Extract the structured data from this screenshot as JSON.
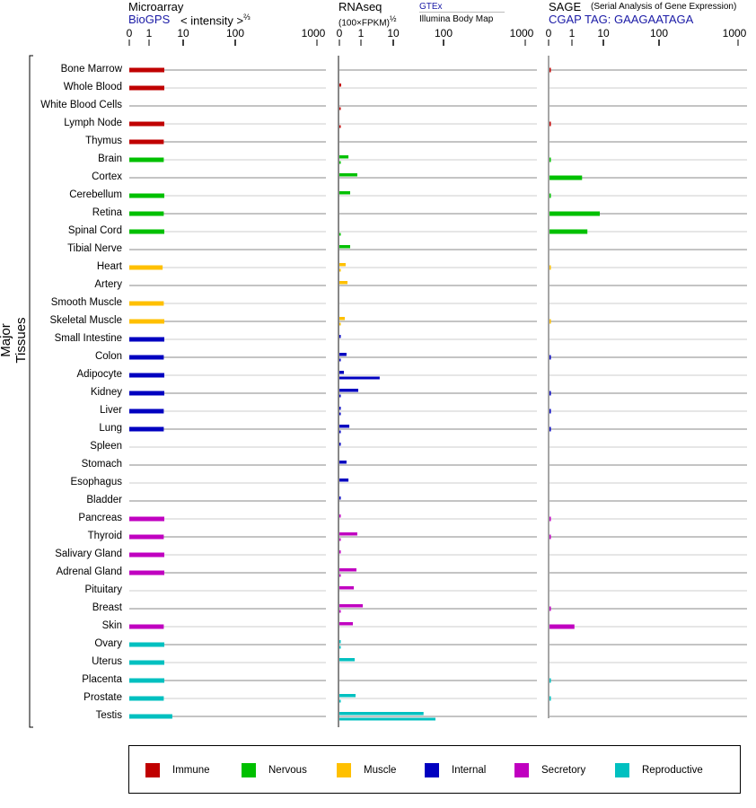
{
  "headers": {
    "microarray": {
      "title": "Microarray",
      "source": "BioGPS",
      "unit": "< intensity >",
      "unit_exp": "⅔"
    },
    "rnaseq": {
      "title": "RNAseq",
      "unit": "(100×FPKM)",
      "unit_exp": "½",
      "source_top": "GTEx",
      "source_bottom": "Illumina Body Map"
    },
    "sage": {
      "title": "SAGE",
      "subtitle": "(Serial Analysis of Gene Expression)",
      "tag": "CGAP TAG: GAAGAATAGA"
    }
  },
  "y_axis_label": "Major Tissues",
  "colors": {
    "Immune": "#c00000",
    "Nervous": "#00c000",
    "Muscle": "#ffc000",
    "Internal": "#0000c0",
    "Secretory": "#c000c0",
    "Reproductive": "#00c0c0",
    "link": "#1a1aa6"
  },
  "legend": [
    "Immune",
    "Nervous",
    "Muscle",
    "Internal",
    "Secretory",
    "Reproductive"
  ],
  "chart_data": {
    "type": "bar",
    "orientation": "horizontal",
    "panels": [
      {
        "key": "microarray",
        "ticks": [
          0,
          1,
          10,
          100,
          1000
        ],
        "tick_labels": [
          "0",
          "1",
          "10",
          "100",
          "1000"
        ],
        "xlim": [
          0,
          1000
        ]
      },
      {
        "key": "rnaseq",
        "series": [
          "gtex",
          "illumina"
        ],
        "ticks": [
          0,
          1,
          10,
          100,
          1000
        ],
        "tick_labels": [
          "0",
          "1",
          "10",
          "100",
          "1000"
        ],
        "xlim": [
          0,
          1000
        ]
      },
      {
        "key": "sage",
        "ticks": [
          0,
          1,
          10,
          100,
          1000
        ],
        "tick_labels": [
          "0",
          "1",
          "10",
          "100",
          "1000"
        ],
        "xlim": [
          0,
          1000
        ]
      }
    ],
    "tissues": [
      {
        "name": "Bone Marrow",
        "group": "Immune",
        "microarray": 2.8,
        "gtex": null,
        "illumina": null,
        "sage": 0.05
      },
      {
        "name": "Whole Blood",
        "group": "Immune",
        "microarray": 2.8,
        "gtex": 0.08,
        "illumina": null,
        "sage": null
      },
      {
        "name": "White Blood Cells",
        "group": "Immune",
        "microarray": null,
        "gtex": null,
        "illumina": 0.05,
        "sage": null
      },
      {
        "name": "Lymph Node",
        "group": "Immune",
        "microarray": 2.8,
        "gtex": null,
        "illumina": 0.05,
        "sage": 0.05
      },
      {
        "name": "Thymus",
        "group": "Immune",
        "microarray": 2.7,
        "gtex": null,
        "illumina": null,
        "sage": null
      },
      {
        "name": "Brain",
        "group": "Nervous",
        "microarray": 2.7,
        "gtex": 0.42,
        "illumina": 0.05,
        "sage": 0.05
      },
      {
        "name": "Cortex",
        "group": "Nervous",
        "microarray": null,
        "gtex": 0.83,
        "illumina": null,
        "sage": 2.1
      },
      {
        "name": "Cerebellum",
        "group": "Nervous",
        "microarray": 2.8,
        "gtex": 0.5,
        "illumina": null,
        "sage": 0.05
      },
      {
        "name": "Retina",
        "group": "Nervous",
        "microarray": 2.7,
        "gtex": null,
        "illumina": null,
        "sage": 7.7
      },
      {
        "name": "Spinal Cord",
        "group": "Nervous",
        "microarray": 2.8,
        "gtex": null,
        "illumina": 0.05,
        "sage": 3.1
      },
      {
        "name": "Tibial Nerve",
        "group": "Nervous",
        "microarray": null,
        "gtex": 0.5,
        "illumina": null,
        "sage": null
      },
      {
        "name": "Heart",
        "group": "Muscle",
        "microarray": 2.5,
        "gtex": 0.29,
        "illumina": 0.05,
        "sage": 0.05
      },
      {
        "name": "Artery",
        "group": "Muscle",
        "microarray": null,
        "gtex": 0.375,
        "illumina": null,
        "sage": null
      },
      {
        "name": "Smooth Muscle",
        "group": "Muscle",
        "microarray": 2.7,
        "gtex": null,
        "illumina": null,
        "sage": null
      },
      {
        "name": "Skeletal Muscle",
        "group": "Muscle",
        "microarray": 2.8,
        "gtex": 0.25,
        "illumina": 0.05,
        "sage": 0.05
      },
      {
        "name": "Small Intestine",
        "group": "Internal",
        "microarray": 2.8,
        "gtex": 0.05,
        "illumina": null,
        "sage": null
      },
      {
        "name": "Colon",
        "group": "Internal",
        "microarray": 2.7,
        "gtex": 0.33,
        "illumina": 0.05,
        "sage": 0.05
      },
      {
        "name": "Adipocyte",
        "group": "Internal",
        "microarray": 2.8,
        "gtex": 0.21,
        "illumina": 3.8,
        "sage": null
      },
      {
        "name": "Kidney",
        "group": "Internal",
        "microarray": 2.8,
        "gtex": 0.875,
        "illumina": 0.05,
        "sage": 0.05
      },
      {
        "name": "Liver",
        "group": "Internal",
        "microarray": 2.7,
        "gtex": 0.05,
        "illumina": 0.05,
        "sage": 0.05
      },
      {
        "name": "Lung",
        "group": "Internal",
        "microarray": 2.7,
        "gtex": 0.46,
        "illumina": 0.05,
        "sage": 0.05
      },
      {
        "name": "Spleen",
        "group": "Internal",
        "microarray": null,
        "gtex": 0.05,
        "illumina": null,
        "sage": null
      },
      {
        "name": "Stomach",
        "group": "Internal",
        "microarray": null,
        "gtex": 0.33,
        "illumina": null,
        "sage": null
      },
      {
        "name": "Esophagus",
        "group": "Internal",
        "microarray": null,
        "gtex": 0.42,
        "illumina": null,
        "sage": null
      },
      {
        "name": "Bladder",
        "group": "Internal",
        "microarray": null,
        "gtex": 0.05,
        "illumina": null,
        "sage": null
      },
      {
        "name": "Pancreas",
        "group": "Secretory",
        "microarray": 2.8,
        "gtex": 0.05,
        "illumina": null,
        "sage": 0.05
      },
      {
        "name": "Thyroid",
        "group": "Secretory",
        "microarray": 2.7,
        "gtex": 0.83,
        "illumina": 0.05,
        "sage": 0.05
      },
      {
        "name": "Salivary Gland",
        "group": "Secretory",
        "microarray": 2.8,
        "gtex": 0.05,
        "illumina": null,
        "sage": null
      },
      {
        "name": "Adrenal Gland",
        "group": "Secretory",
        "microarray": 2.8,
        "gtex": 0.79,
        "illumina": 0.05,
        "sage": null
      },
      {
        "name": "Pituitary",
        "group": "Secretory",
        "microarray": null,
        "gtex": 0.67,
        "illumina": null,
        "sage": null
      },
      {
        "name": "Breast",
        "group": "Secretory",
        "microarray": null,
        "gtex": 1.14,
        "illumina": 0.05,
        "sage": 0.05
      },
      {
        "name": "Skin",
        "group": "Secretory",
        "microarray": 2.7,
        "gtex": 0.625,
        "illumina": null,
        "sage": 1.2
      },
      {
        "name": "Ovary",
        "group": "Reproductive",
        "microarray": 2.8,
        "gtex": 0.05,
        "illumina": 0.05,
        "sage": null
      },
      {
        "name": "Uterus",
        "group": "Reproductive",
        "microarray": 2.8,
        "gtex": 0.71,
        "illumina": null,
        "sage": null
      },
      {
        "name": "Placenta",
        "group": "Reproductive",
        "microarray": 2.8,
        "gtex": null,
        "illumina": null,
        "sage": 0.05
      },
      {
        "name": "Prostate",
        "group": "Reproductive",
        "microarray": 2.7,
        "gtex": 0.75,
        "illumina": 0.05,
        "sage": 0.05
      },
      {
        "name": "Testis",
        "group": "Reproductive",
        "microarray": 4.8,
        "gtex": 40,
        "illumina": 69,
        "sage": null
      }
    ]
  }
}
